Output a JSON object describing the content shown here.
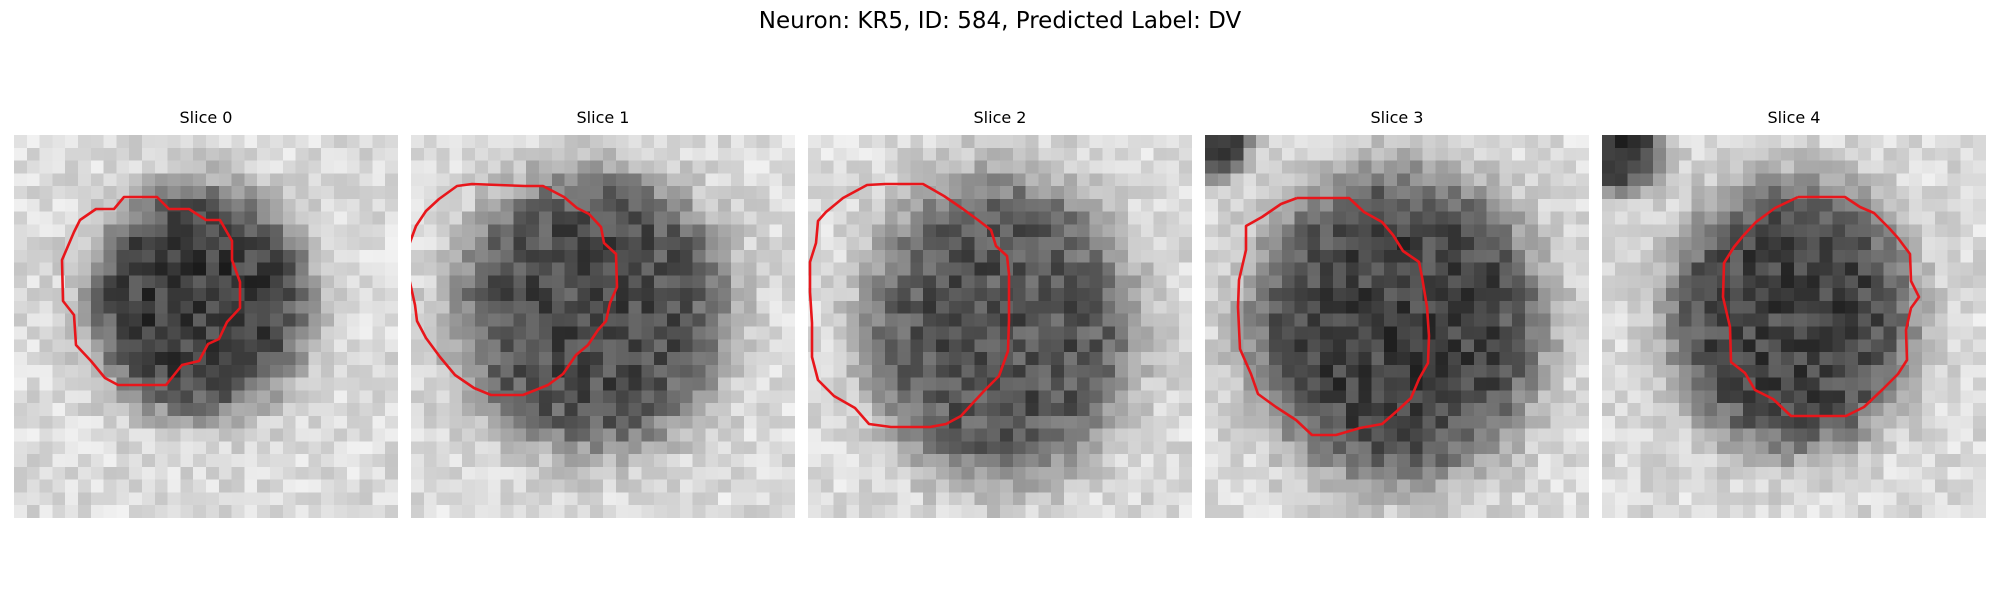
{
  "figure": {
    "title": "Neuron: KR5, ID: 584, Predicted Label: DV"
  },
  "contour_color": "#e8161b",
  "panels": [
    {
      "title": "Slice 0"
    },
    {
      "title": "Slice 1"
    },
    {
      "title": "Slice 2"
    },
    {
      "title": "Slice 3"
    },
    {
      "title": "Slice 4"
    }
  ]
}
